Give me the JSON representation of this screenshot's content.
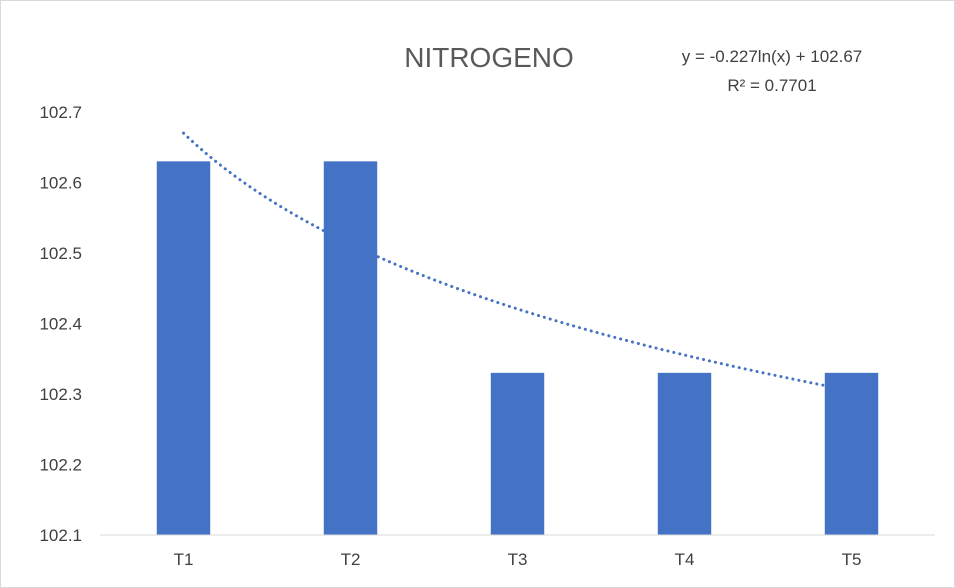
{
  "chart_data": {
    "type": "bar",
    "title": "NITROGENO",
    "categories": [
      "T1",
      "T2",
      "T3",
      "T4",
      "T5"
    ],
    "values": [
      102.63,
      102.63,
      102.33,
      102.33,
      102.33
    ],
    "yticks": [
      "102.1",
      "102.2",
      "102.3",
      "102.4",
      "102.5",
      "102.6",
      "102.7"
    ],
    "ylim": [
      102.1,
      102.7
    ],
    "grid": false,
    "bar_color": "#4472c4",
    "trendline": {
      "type": "logarithmic",
      "a": -0.227,
      "b": 102.67,
      "color": "#4472c4",
      "style": "dotted",
      "equation": "y = -0.227ln(x) + 102.67",
      "r_squared": "R² = 0.7701"
    }
  }
}
